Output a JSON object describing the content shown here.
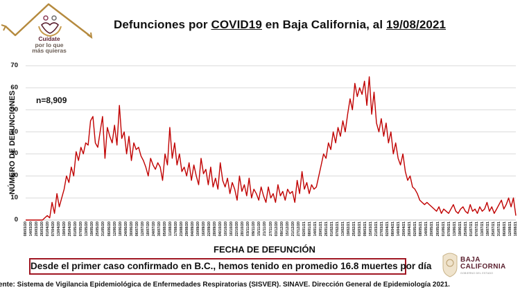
{
  "logo": {
    "line1": "Cuídate",
    "line2": "por lo que",
    "line3": "más quieras",
    "house_color": "#b58a3e",
    "accent_color": "#5a1f2e"
  },
  "title": {
    "prefix": "Defunciones por ",
    "underlined1": "COVID19",
    "middle": " en Baja California, al ",
    "underlined2": "19/08/2021"
  },
  "y_axis_label": "NÚMERO DE DEFUNCIONES",
  "x_axis_label": "FECHA DE DEFUNCIÓN",
  "n_label": "n=8,909",
  "note": "Desde el primer caso confirmado en B.C., hemos tenido en promedio 16.8 muertes por día",
  "state_logo": {
    "line1": "BAJA",
    "line2": "CALIFORNIA",
    "sub": "GOBIERNO DEL ESTADO"
  },
  "source": "ente: Sistema de Vigilancia Epidemiológica de Enfermedades Respiratorias (SISVER). SINAVE. Dirección General de Epidemiología 2021.",
  "colors": {
    "line": "#c00000",
    "grid": "#d9d9d9",
    "note_border": "#a01622"
  },
  "chart_data": {
    "type": "line",
    "title": "Defunciones por COVID19 en Baja California, al 19/08/2021",
    "xlabel": "FECHA DE DEFUNCIÓN",
    "ylabel": "NÚMERO DE DEFUNCIONES",
    "ylim": [
      0,
      70
    ],
    "yticks": [
      0,
      10,
      20,
      30,
      40,
      50,
      60,
      70
    ],
    "grid": true,
    "legend": "none",
    "annotation": "n=8,909",
    "x_start": "08/03/20",
    "x_end": "18/08/21",
    "x_tick_interval_days": 6,
    "x_tick_labels": [
      "08/03/20",
      "14/03/20",
      "20/03/20",
      "26/03/20",
      "01/04/20",
      "07/04/20",
      "13/04/20",
      "19/04/20",
      "25/04/20",
      "01/05/20",
      "07/05/20",
      "13/05/20",
      "19/05/20",
      "25/05/20",
      "31/05/20",
      "06/06/20",
      "12/06/20",
      "18/06/20",
      "24/06/20",
      "30/06/20",
      "06/07/20",
      "12/07/20",
      "18/07/20",
      "24/07/20",
      "30/07/20",
      "05/08/20",
      "11/08/20",
      "17/08/20",
      "23/08/20",
      "29/08/20",
      "04/09/20",
      "10/09/20",
      "16/09/20",
      "22/09/20",
      "28/09/20",
      "04/10/20",
      "10/10/20",
      "16/10/20",
      "22/10/20",
      "28/10/20",
      "03/11/20",
      "09/11/20",
      "15/11/20",
      "21/11/20",
      "27/11/20",
      "03/12/20",
      "09/12/20",
      "15/12/20",
      "21/12/20",
      "27/12/20",
      "02/01/21",
      "08/01/21",
      "14/01/21",
      "20/01/21",
      "26/01/21",
      "01/02/21",
      "07/02/21",
      "13/02/21",
      "19/02/21",
      "25/02/21",
      "03/03/21",
      "09/03/21",
      "15/03/21",
      "21/03/21",
      "27/03/21",
      "02/04/21",
      "08/04/21",
      "14/04/21",
      "20/04/21",
      "26/04/21",
      "02/05/21",
      "08/05/21",
      "14/05/21",
      "20/05/21",
      "26/05/21",
      "01/06/21",
      "07/06/21",
      "13/06/21",
      "19/06/21",
      "25/06/21",
      "01/07/21",
      "07/07/21",
      "13/07/21",
      "19/07/21",
      "25/07/21",
      "31/07/21",
      "06/08/21",
      "12/08/21",
      "18/08/21"
    ],
    "sample_interval_days": 3,
    "values": [
      0,
      0,
      0,
      0,
      0,
      0,
      0,
      0,
      1,
      2,
      1,
      8,
      3,
      12,
      6,
      10,
      14,
      20,
      17,
      24,
      20,
      31,
      27,
      33,
      30,
      35,
      34,
      45,
      47,
      35,
      33,
      40,
      47,
      28,
      42,
      38,
      35,
      43,
      34,
      52,
      37,
      40,
      30,
      38,
      27,
      35,
      32,
      33,
      29,
      27,
      24,
      20,
      28,
      25,
      23,
      26,
      24,
      18,
      30,
      25,
      42,
      28,
      35,
      25,
      30,
      22,
      24,
      20,
      26,
      18,
      25,
      20,
      16,
      28,
      21,
      23,
      16,
      24,
      15,
      19,
      14,
      26,
      18,
      15,
      19,
      12,
      17,
      14,
      9,
      20,
      13,
      16,
      11,
      19,
      10,
      14,
      12,
      9,
      15,
      11,
      8,
      15,
      10,
      12,
      8,
      16,
      11,
      13,
      9,
      14,
      12,
      13,
      8,
      18,
      12,
      22,
      14,
      17,
      12,
      16,
      14,
      15,
      20,
      25,
      30,
      28,
      35,
      32,
      40,
      35,
      42,
      38,
      45,
      40,
      48,
      55,
      50,
      62,
      56,
      60,
      57,
      63,
      52,
      65,
      48,
      58,
      44,
      40,
      46,
      38,
      44,
      35,
      40,
      30,
      35,
      28,
      25,
      30,
      22,
      18,
      20,
      15,
      14,
      12,
      9,
      8,
      7,
      8,
      7,
      6,
      5,
      4,
      6,
      3,
      5,
      4,
      3,
      5,
      7,
      4,
      3,
      5,
      6,
      4,
      3,
      7,
      4,
      5,
      3,
      6,
      4,
      5,
      8,
      4,
      6,
      3,
      5,
      7,
      9,
      5,
      7,
      10,
      6,
      10,
      2
    ]
  }
}
